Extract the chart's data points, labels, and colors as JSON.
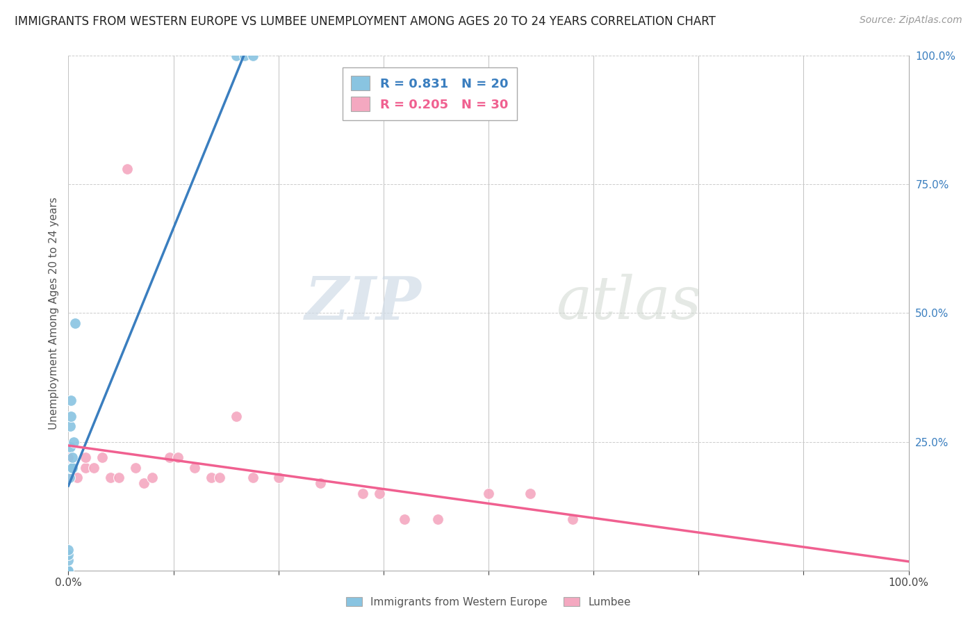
{
  "title": "IMMIGRANTS FROM WESTERN EUROPE VS LUMBEE UNEMPLOYMENT AMONG AGES 20 TO 24 YEARS CORRELATION CHART",
  "source": "Source: ZipAtlas.com",
  "ylabel": "Unemployment Among Ages 20 to 24 years",
  "legend1_label": "Immigrants from Western Europe",
  "legend2_label": "Lumbee",
  "r1": 0.831,
  "n1": 20,
  "r2": 0.205,
  "n2": 30,
  "blue_color": "#89c4e1",
  "pink_color": "#f4a8c0",
  "blue_line_color": "#3a7ebf",
  "pink_line_color": "#f06090",
  "watermark_zip": "ZIP",
  "watermark_atlas": "atlas",
  "blue_scatter_x": [
    0.0,
    0.0,
    0.0,
    0.0,
    0.0,
    0.0,
    0.001,
    0.001,
    0.002,
    0.002,
    0.003,
    0.003,
    0.004,
    0.005,
    0.005,
    0.006,
    0.008,
    0.2,
    0.21,
    0.22
  ],
  "blue_scatter_y": [
    0.0,
    0.0,
    0.0,
    0.02,
    0.03,
    0.04,
    0.18,
    0.2,
    0.24,
    0.28,
    0.3,
    0.33,
    0.2,
    0.2,
    0.22,
    0.25,
    0.48,
    1.0,
    1.0,
    1.0
  ],
  "pink_scatter_x": [
    0.0,
    0.0,
    0.0,
    0.01,
    0.02,
    0.02,
    0.03,
    0.04,
    0.05,
    0.06,
    0.07,
    0.08,
    0.09,
    0.1,
    0.12,
    0.13,
    0.15,
    0.17,
    0.18,
    0.2,
    0.22,
    0.25,
    0.3,
    0.35,
    0.37,
    0.4,
    0.44,
    0.5,
    0.55,
    0.6
  ],
  "pink_scatter_y": [
    0.2,
    0.18,
    0.22,
    0.18,
    0.2,
    0.22,
    0.2,
    0.22,
    0.18,
    0.18,
    0.78,
    0.2,
    0.17,
    0.18,
    0.22,
    0.22,
    0.2,
    0.18,
    0.18,
    0.3,
    0.18,
    0.18,
    0.17,
    0.15,
    0.15,
    0.1,
    0.1,
    0.15,
    0.15,
    0.1
  ],
  "xlim": [
    0.0,
    1.0
  ],
  "ylim": [
    0.0,
    1.0
  ],
  "yticks": [
    0.0,
    0.25,
    0.5,
    0.75,
    1.0
  ],
  "ytick_labels": [
    "",
    "25.0%",
    "50.0%",
    "75.0%",
    "100.0%"
  ],
  "xtick_positions": [
    0.0,
    0.125,
    0.25,
    0.375,
    0.5,
    0.625,
    0.75,
    0.875,
    1.0
  ],
  "xtick_labels_show": [
    "0.0%",
    "",
    "",
    "",
    "",
    "",
    "",
    "",
    "100.0%"
  ],
  "title_fontsize": 12,
  "source_fontsize": 10,
  "label_fontsize": 11,
  "legend_fontsize": 13
}
